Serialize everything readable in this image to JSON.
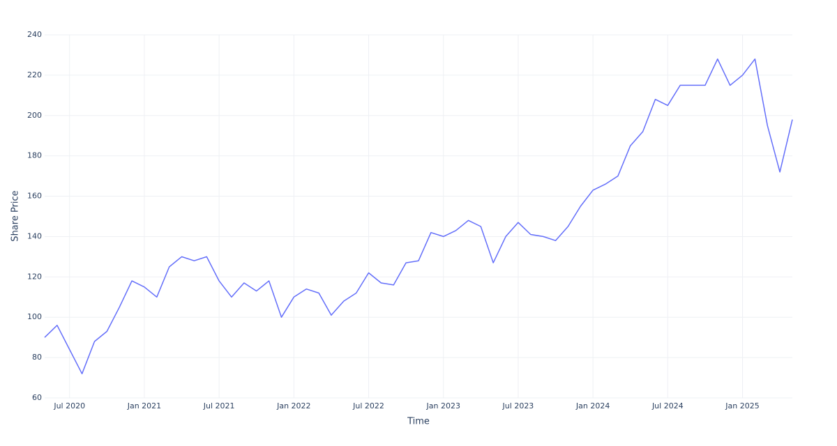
{
  "chart_data": {
    "type": "line",
    "x_label": "Time",
    "y_label": "Share Price",
    "x": [
      "2020-05",
      "2020-06",
      "2020-07",
      "2020-08",
      "2020-09",
      "2020-10",
      "2020-11",
      "2020-12",
      "2021-01",
      "2021-02",
      "2021-03",
      "2021-04",
      "2021-05",
      "2021-06",
      "2021-07",
      "2021-08",
      "2021-09",
      "2021-10",
      "2021-11",
      "2021-12",
      "2022-01",
      "2022-02",
      "2022-03",
      "2022-04",
      "2022-05",
      "2022-06",
      "2022-07",
      "2022-08",
      "2022-09",
      "2022-10",
      "2022-11",
      "2022-12",
      "2023-01",
      "2023-02",
      "2023-03",
      "2023-04",
      "2023-05",
      "2023-06",
      "2023-07",
      "2023-08",
      "2023-09",
      "2023-10",
      "2023-11",
      "2023-12",
      "2024-01",
      "2024-02",
      "2024-03",
      "2024-04",
      "2024-05",
      "2024-06",
      "2024-07",
      "2024-08",
      "2024-09",
      "2024-10",
      "2024-11",
      "2024-12",
      "2025-01",
      "2025-02",
      "2025-03",
      "2025-04",
      "2025-05"
    ],
    "series": [
      {
        "name": "Share Price",
        "color": "#636efa",
        "values": [
          90,
          96,
          84,
          72,
          88,
          93,
          105,
          118,
          115,
          110,
          125,
          130,
          128,
          130,
          118,
          110,
          117,
          113,
          118,
          100,
          110,
          114,
          112,
          101,
          108,
          112,
          122,
          117,
          116,
          127,
          128,
          142,
          140,
          143,
          148,
          145,
          127,
          140,
          147,
          141,
          140,
          138,
          145,
          155,
          163,
          166,
          170,
          185,
          192,
          208,
          205,
          215,
          215,
          215,
          228,
          215,
          220,
          228,
          195,
          172,
          198
        ]
      }
    ],
    "xlim": [
      "2020-05",
      "2025-05"
    ],
    "xticks": [
      {
        "value": "2020-07",
        "label": "Jul 2020"
      },
      {
        "value": "2021-01",
        "label": "Jan 2021"
      },
      {
        "value": "2021-07",
        "label": "Jul 2021"
      },
      {
        "value": "2022-01",
        "label": "Jan 2022"
      },
      {
        "value": "2022-07",
        "label": "Jul 2022"
      },
      {
        "value": "2023-01",
        "label": "Jan 2023"
      },
      {
        "value": "2023-07",
        "label": "Jul 2023"
      },
      {
        "value": "2024-01",
        "label": "Jan 2024"
      },
      {
        "value": "2024-07",
        "label": "Jul 2024"
      },
      {
        "value": "2025-01",
        "label": "Jan 2025"
      }
    ],
    "ylim": [
      60,
      240
    ],
    "yticks": [
      60,
      80,
      100,
      120,
      140,
      160,
      180,
      200,
      220,
      240
    ],
    "grid": true
  }
}
